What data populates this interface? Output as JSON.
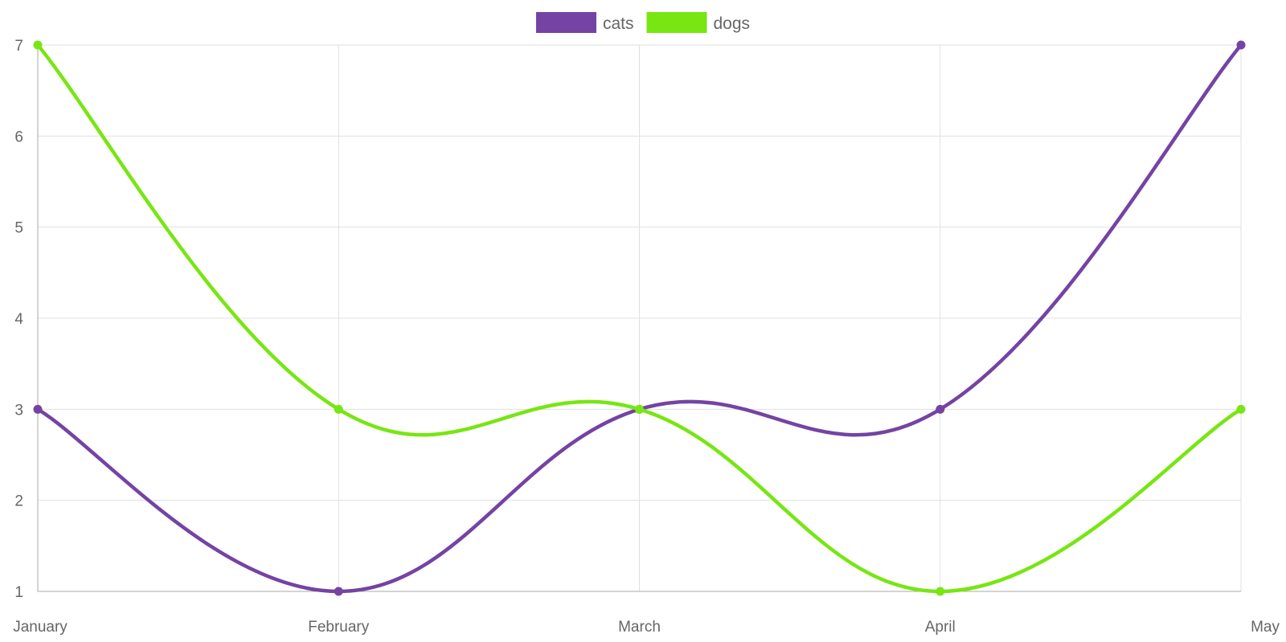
{
  "chart_data": {
    "type": "line",
    "title": "",
    "xlabel": "",
    "ylabel": "",
    "categories": [
      "January",
      "February",
      "March",
      "April",
      "May"
    ],
    "series": [
      {
        "name": "cats",
        "values": [
          3,
          1,
          3,
          3,
          7
        ],
        "color": "#7443a3"
      },
      {
        "name": "dogs",
        "values": [
          7,
          3,
          3,
          1,
          3
        ],
        "color": "#77e612"
      }
    ],
    "ylim": [
      1,
      7
    ],
    "yticks": [
      1,
      2,
      3,
      4,
      5,
      6,
      7
    ],
    "grid": true,
    "smooth": true,
    "legend_position": "top-center",
    "gridline_color": "#e0e0e0",
    "axis_color": "#a8a8a8",
    "tick_label_color": "#666666"
  }
}
